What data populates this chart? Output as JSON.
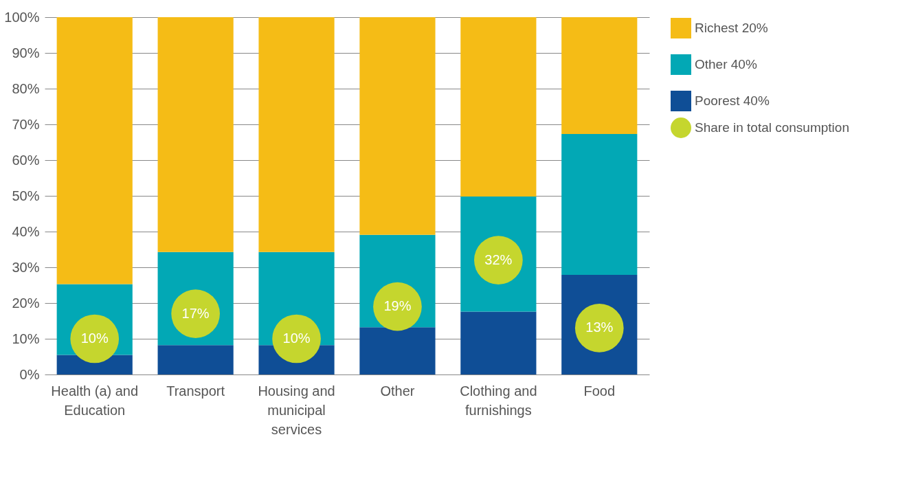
{
  "chart_data": {
    "type": "bar",
    "stacked": true,
    "categories": [
      "Health (a) and Education",
      "Transport",
      "Housing and municipal services",
      "Other",
      "Clothing and furnishings",
      "Food"
    ],
    "series": [
      {
        "name": "Poorest 40%",
        "color": "#0f4e96",
        "values": [
          5.5,
          8.2,
          8.2,
          13.2,
          17.6,
          27.9
        ]
      },
      {
        "name": "Other 40%",
        "color": "#02a8b5",
        "values": [
          19.8,
          26.1,
          26.1,
          25.9,
          32.2,
          39.4
        ]
      },
      {
        "name": "Richest 20%",
        "color": "#f5bc16",
        "values": [
          74.7,
          65.7,
          65.7,
          60.9,
          50.2,
          32.7
        ]
      },
      {
        "name": "Share in total consumption",
        "type": "scatter",
        "color": "#c5d62e",
        "marker": "circle",
        "x": [
          "Health (a) and Education",
          "Transport",
          "Housing and municipal services",
          "Other",
          "Clothing and furnishings",
          "Food"
        ],
        "values": [
          10,
          17,
          10,
          19,
          32,
          13
        ],
        "value_labels": [
          "10%",
          "17%",
          "10%",
          "19%",
          "32%",
          "13%"
        ]
      }
    ],
    "ylim": [
      0,
      100
    ],
    "yticks": [
      {
        "value": 0,
        "label": "0%"
      },
      {
        "value": 10,
        "label": "10%"
      },
      {
        "value": 20,
        "label": "20%"
      },
      {
        "value": 30,
        "label": "30%"
      },
      {
        "value": 40,
        "label": "40%"
      },
      {
        "value": 50,
        "label": "50%"
      },
      {
        "value": 60,
        "label": "60%"
      },
      {
        "value": 70,
        "label": "70%"
      },
      {
        "value": 80,
        "label": "80%"
      },
      {
        "value": 90,
        "label": "90%"
      },
      {
        "value": 100,
        "label": "100%"
      }
    ],
    "grid": "y",
    "legend": "right"
  }
}
